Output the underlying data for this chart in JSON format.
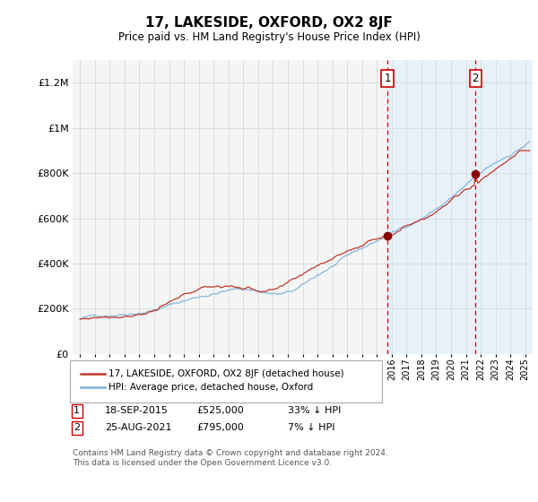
{
  "title": "17, LAKESIDE, OXFORD, OX2 8JF",
  "subtitle": "Price paid vs. HM Land Registry's House Price Index (HPI)",
  "footnote": "Contains HM Land Registry data © Crown copyright and database right 2024.\nThis data is licensed under the Open Government Licence v3.0.",
  "legend_line1": "17, LAKESIDE, OXFORD, OX2 8JF (detached house)",
  "legend_line2": "HPI: Average price, detached house, Oxford",
  "transaction1_date": "18-SEP-2015",
  "transaction1_price": "£525,000",
  "transaction1_hpi": "33% ↓ HPI",
  "transaction1_year": 2015.72,
  "transaction1_price_val": 525000,
  "transaction2_date": "25-AUG-2021",
  "transaction2_price": "£795,000",
  "transaction2_hpi": "7% ↓ HPI",
  "transaction2_year": 2021.65,
  "transaction2_price_val": 795000,
  "ylim": [
    0,
    1300000
  ],
  "xlim": [
    1994.5,
    2025.5
  ],
  "hpi_color": "#7ab0d8",
  "property_color": "#c0392b",
  "marker_color": "#8b0000",
  "vline_color": "#cc0000",
  "bg_chart": "#f5f5f5",
  "bg_right": "#ddeeff",
  "grid_color": "#dddddd"
}
